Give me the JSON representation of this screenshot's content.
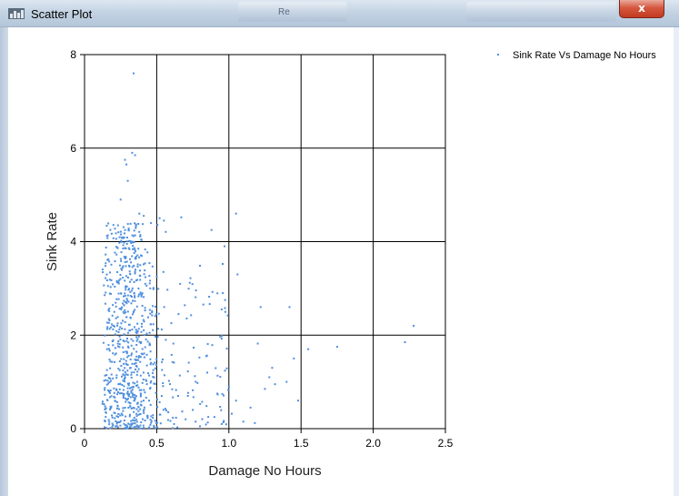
{
  "window": {
    "title": "Scatter Plot",
    "tab_label": "Re",
    "close_label": "x"
  },
  "chart_data": {
    "type": "scatter",
    "title": "",
    "xlabel": "Damage No Hours",
    "ylabel": "Sink Rate",
    "xlim": [
      0,
      2.5
    ],
    "ylim": [
      0,
      8
    ],
    "xticks": [
      "0",
      "0.5",
      "1.0",
      "1.5",
      "2.0",
      "2.5"
    ],
    "yticks": [
      "0",
      "2",
      "4",
      "6",
      "8"
    ],
    "grid": true,
    "legend_position": "top-right",
    "series": [
      {
        "name": "Sink Rate Vs Damage No Hours",
        "color": "#4f8fdc",
        "points": [
          [
            0.34,
            7.6
          ],
          [
            0.33,
            5.9
          ],
          [
            0.35,
            5.85
          ],
          [
            0.28,
            5.75
          ],
          [
            0.29,
            5.65
          ],
          [
            0.3,
            5.3
          ],
          [
            0.25,
            4.9
          ],
          [
            0.41,
            4.55
          ],
          [
            0.38,
            4.6
          ],
          [
            0.52,
            4.5
          ],
          [
            0.55,
            4.45
          ],
          [
            0.67,
            4.52
          ],
          [
            1.05,
            4.6
          ],
          [
            0.88,
            4.25
          ],
          [
            0.97,
            3.9
          ],
          [
            1.06,
            3.3
          ],
          [
            0.95,
            2.55
          ],
          [
            1.22,
            2.6
          ],
          [
            1.42,
            2.6
          ],
          [
            1.55,
            1.7
          ],
          [
            1.75,
            1.75
          ],
          [
            2.28,
            2.2
          ],
          [
            2.22,
            1.85
          ],
          [
            1.2,
            1.82
          ],
          [
            1.3,
            1.3
          ],
          [
            1.4,
            1.0
          ],
          [
            1.45,
            1.5
          ],
          [
            1.48,
            0.6
          ],
          [
            1.25,
            0.85
          ],
          [
            1.1,
            0.15
          ],
          [
            1.15,
            0.45
          ],
          [
            1.32,
            0.95
          ],
          [
            1.28,
            1.1
          ],
          [
            1.05,
            0.6
          ],
          [
            1.02,
            0.32
          ],
          [
            0.9,
            0.25
          ],
          [
            0.8,
            0.05
          ],
          [
            0.92,
            0.75
          ],
          [
            0.85,
            1.2
          ],
          [
            0.75,
            0.4
          ],
          [
            0.7,
            0.2
          ],
          [
            0.62,
            0.1
          ],
          [
            0.58,
            0.35
          ],
          [
            0.95,
            0.1
          ],
          [
            1.18,
            0.12
          ],
          [
            1.0,
            0.9
          ]
        ]
      }
    ]
  }
}
